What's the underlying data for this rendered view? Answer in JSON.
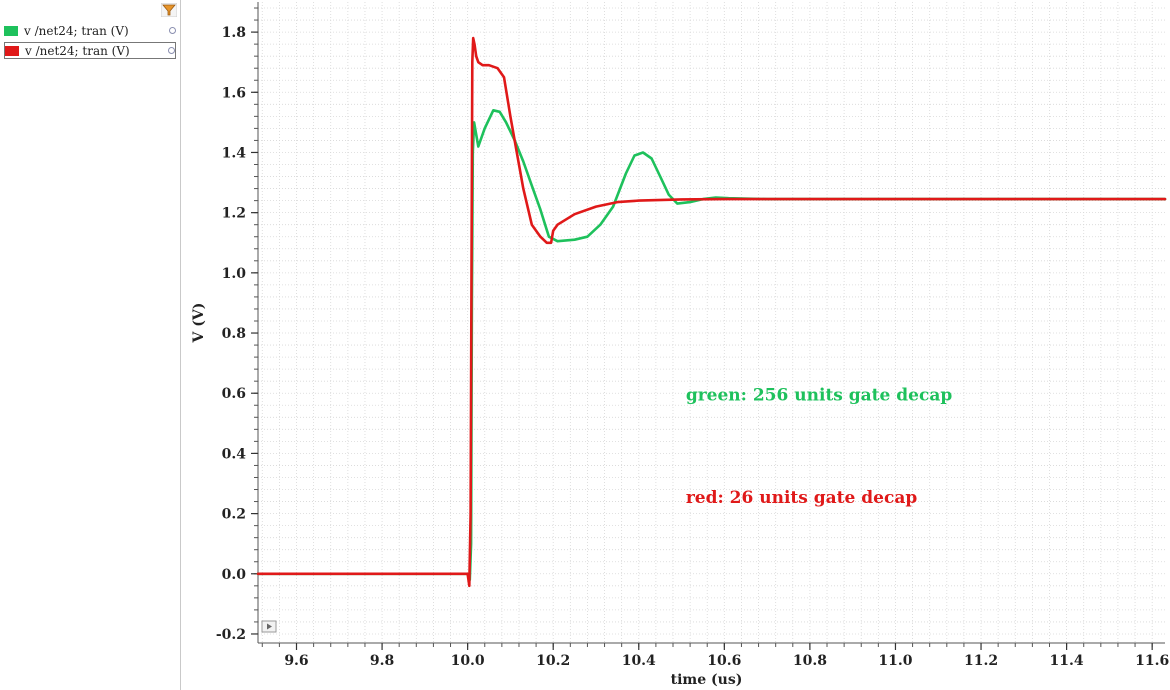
{
  "legend": {
    "items": [
      {
        "label": "v /net24; tran (V)",
        "color": "#1ec15c"
      },
      {
        "label": "v /net24; tran (V)",
        "color": "#e01919"
      }
    ]
  },
  "chart_data": {
    "type": "line",
    "xlabel": "time (us)",
    "ylabel": "V (V)",
    "xlim": [
      9.51,
      11.63
    ],
    "ylim": [
      -0.23,
      1.9
    ],
    "xticks": [
      9.6,
      9.8,
      10.0,
      10.2,
      10.4,
      10.6,
      10.8,
      11.0,
      11.2,
      11.4,
      11.6
    ],
    "xtick_labels": [
      "9.6",
      "9.8",
      "10.0",
      "10.2",
      "10.4",
      "10.6",
      "10.8",
      "11.0",
      "11.2",
      "11.4",
      "11.6"
    ],
    "yticks": [
      -0.2,
      0.0,
      0.2,
      0.4,
      0.6,
      0.8,
      1.0,
      1.2,
      1.4,
      1.6,
      1.8
    ],
    "ytick_labels": [
      "-0.2",
      "0.0",
      "0.2",
      "0.4",
      "0.6",
      "0.8",
      "1.0",
      "1.2",
      "1.4",
      "1.6",
      "1.8"
    ],
    "grid": true,
    "annotations": [
      {
        "text": "green: 256 units gate decap",
        "x": 10.51,
        "y": 0.595,
        "color": "#1ec15c"
      },
      {
        "text": "red: 26 units gate decap",
        "x": 10.51,
        "y": 0.255,
        "color": "#e01919"
      }
    ],
    "series": [
      {
        "color": "#1ec15c",
        "x": [
          9.51,
          10.0,
          10.005,
          10.008,
          10.01,
          10.012,
          10.015,
          10.025,
          10.04,
          10.06,
          10.075,
          10.09,
          10.11,
          10.13,
          10.15,
          10.17,
          10.19,
          10.21,
          10.25,
          10.28,
          10.31,
          10.34,
          10.37,
          10.39,
          10.41,
          10.43,
          10.45,
          10.47,
          10.49,
          10.52,
          10.55,
          10.58,
          10.61,
          10.7,
          11.63
        ],
        "y": [
          0.0,
          0.0,
          -0.02,
          0.1,
          0.9,
          1.4,
          1.5,
          1.42,
          1.48,
          1.54,
          1.535,
          1.5,
          1.44,
          1.37,
          1.29,
          1.21,
          1.12,
          1.105,
          1.11,
          1.12,
          1.16,
          1.22,
          1.33,
          1.39,
          1.4,
          1.38,
          1.32,
          1.26,
          1.23,
          1.235,
          1.245,
          1.25,
          1.248,
          1.245,
          1.245
        ]
      },
      {
        "color": "#e01919",
        "x": [
          9.51,
          10.0,
          10.004,
          10.007,
          10.009,
          10.011,
          10.013,
          10.016,
          10.02,
          10.025,
          10.035,
          10.05,
          10.07,
          10.085,
          10.1,
          10.115,
          10.13,
          10.15,
          10.17,
          10.185,
          10.195,
          10.2,
          10.21,
          10.25,
          10.3,
          10.35,
          10.4,
          10.5,
          10.6,
          11.63
        ],
        "y": [
          0.0,
          0.0,
          -0.04,
          0.2,
          1.0,
          1.7,
          1.78,
          1.76,
          1.72,
          1.7,
          1.69,
          1.69,
          1.68,
          1.65,
          1.52,
          1.4,
          1.28,
          1.16,
          1.12,
          1.1,
          1.1,
          1.14,
          1.16,
          1.195,
          1.22,
          1.235,
          1.24,
          1.244,
          1.245,
          1.245
        ]
      }
    ]
  }
}
